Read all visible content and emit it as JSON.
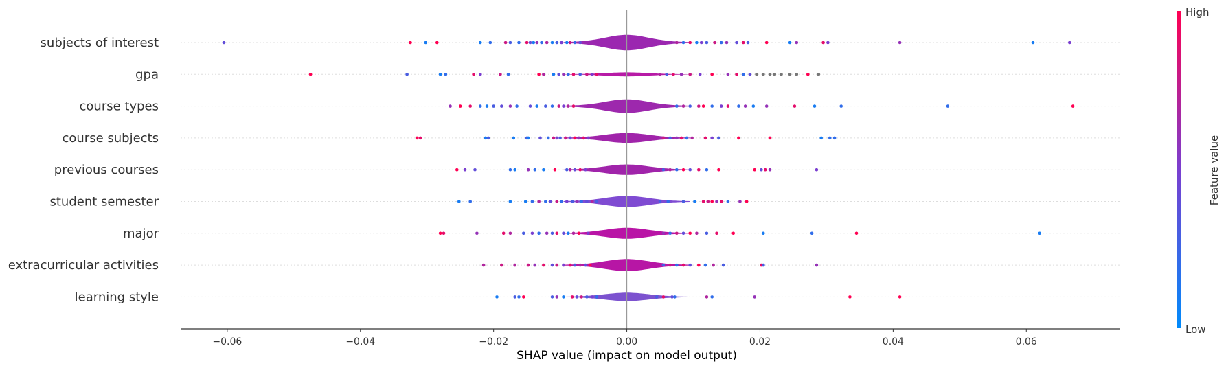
{
  "chart_data": {
    "type": "scatter",
    "subtype": "violin-summary",
    "title": "",
    "xlabel": "SHAP value (impact on model output)",
    "ylabel": "",
    "xlim": [
      -0.067,
      0.074
    ],
    "xticks": [
      -0.06,
      -0.04,
      -0.02,
      0.0,
      0.02,
      0.04,
      0.06
    ],
    "xtick_labels": [
      "−0.06",
      "−0.04",
      "−0.02",
      "0.00",
      "0.02",
      "0.04",
      "0.06"
    ],
    "grid": false,
    "colorbar": {
      "label": "Feature value",
      "high_label": "High",
      "low_label": "Low",
      "high_color": "#ff0052",
      "low_color": "#008bfb"
    },
    "features": [
      {
        "name": "subjects of interest",
        "violin_color": "#9b27b0",
        "violin_halfwidth": 0.7,
        "points": [
          [
            -0.0605,
            0.4
          ],
          [
            -0.0325,
            1
          ],
          [
            -0.0302,
            0.1
          ],
          [
            -0.0285,
            1
          ],
          [
            -0.022,
            0.1
          ],
          [
            -0.0205,
            0.2
          ],
          [
            -0.0182,
            0.8
          ],
          [
            -0.0175,
            0.3
          ],
          [
            -0.0162,
            0.2
          ],
          [
            -0.015,
            0.9
          ],
          [
            -0.0145,
            0.4
          ],
          [
            -0.014,
            0.1
          ],
          [
            -0.0135,
            0.6
          ],
          [
            -0.0128,
            0.2
          ],
          [
            -0.012,
            0.7
          ],
          [
            -0.0112,
            0.1
          ],
          [
            -0.0105,
            0.3
          ],
          [
            -0.0098,
            0.5
          ],
          [
            -0.009,
            0.1
          ],
          [
            -0.0085,
            0.8
          ],
          [
            -0.0078,
            0.2
          ],
          [
            -0.007,
            0.4
          ],
          [
            0.0075,
            0.7
          ],
          [
            0.0085,
            0.2
          ],
          [
            0.0095,
            0.9
          ],
          [
            0.0105,
            0.1
          ],
          [
            0.0112,
            0.5
          ],
          [
            0.012,
            0.3
          ],
          [
            0.0132,
            0.8
          ],
          [
            0.0142,
            0.2
          ],
          [
            0.015,
            0.6
          ],
          [
            0.0165,
            0.4
          ],
          [
            0.0175,
            0.9
          ],
          [
            0.0182,
            0.3
          ],
          [
            0.021,
            1
          ],
          [
            0.0245,
            0.1
          ],
          [
            0.0255,
            0.6
          ],
          [
            0.0295,
            0.9
          ],
          [
            0.0302,
            0.5
          ],
          [
            0.041,
            0.6
          ],
          [
            0.061,
            0.1
          ],
          [
            0.0665,
            0.5
          ]
        ]
      },
      {
        "name": "gpa",
        "violin_color": "#b71aa6",
        "violin_halfwidth": 0.18,
        "points": [
          [
            -0.0475,
            1
          ],
          [
            -0.033,
            0.3
          ],
          [
            -0.028,
            0.1
          ],
          [
            -0.0272,
            0.2
          ],
          [
            -0.023,
            0.9
          ],
          [
            -0.022,
            0.5
          ],
          [
            -0.019,
            0.8
          ],
          [
            -0.0178,
            0.2
          ],
          [
            -0.0132,
            1
          ],
          [
            -0.0125,
            0.7
          ],
          [
            -0.011,
            0.1
          ],
          [
            -0.0102,
            0.4
          ],
          [
            -0.0095,
            0.6
          ],
          [
            -0.0088,
            0.2
          ],
          [
            -0.008,
            0.9
          ],
          [
            -0.007,
            0.3
          ],
          [
            -0.006,
            0.8
          ],
          [
            -0.0052,
            0.5
          ],
          [
            -0.0045,
            0.9
          ],
          [
            0.005,
            0.7
          ],
          [
            0.006,
            0.3
          ],
          [
            0.007,
            0.9
          ],
          [
            0.0082,
            0.6
          ],
          [
            0.0095,
            0.8
          ],
          [
            0.011,
            0.5
          ],
          [
            0.0128,
            1
          ],
          [
            0.0152,
            0.6
          ],
          [
            0.0165,
            0.9
          ],
          [
            0.0175,
            0.2
          ],
          [
            0.0185,
            0.4
          ],
          [
            0.0195,
            null
          ],
          [
            0.0205,
            null
          ],
          [
            0.0215,
            null
          ],
          [
            0.0222,
            null
          ],
          [
            0.0232,
            null
          ],
          [
            0.0245,
            null
          ],
          [
            0.0255,
            null
          ],
          [
            0.0272,
            1
          ],
          [
            0.0288,
            null
          ]
        ]
      },
      {
        "name": "course types",
        "violin_color": "#9d28ad",
        "violin_halfwidth": 0.62,
        "points": [
          [
            -0.0265,
            0.6
          ],
          [
            -0.025,
            1
          ],
          [
            -0.0235,
            0.9
          ],
          [
            -0.022,
            0.2
          ],
          [
            -0.021,
            0.1
          ],
          [
            -0.02,
            0.3
          ],
          [
            -0.0188,
            0.4
          ],
          [
            -0.0175,
            0.6
          ],
          [
            -0.0165,
            0.2
          ],
          [
            -0.0145,
            0.4
          ],
          [
            -0.0135,
            0.1
          ],
          [
            -0.0122,
            0.3
          ],
          [
            -0.0112,
            0.2
          ],
          [
            -0.0102,
            0.8
          ],
          [
            -0.0095,
            0.5
          ],
          [
            -0.0088,
            0.7
          ],
          [
            -0.008,
            0.9
          ],
          [
            0.0075,
            0.2
          ],
          [
            0.0085,
            0.7
          ],
          [
            0.0095,
            0.3
          ],
          [
            0.0108,
            0.8
          ],
          [
            0.0115,
            1
          ],
          [
            0.0128,
            0.2
          ],
          [
            0.0142,
            0.5
          ],
          [
            0.0152,
            0.9
          ],
          [
            0.0168,
            0.2
          ],
          [
            0.0178,
            0.6
          ],
          [
            0.019,
            0.1
          ],
          [
            0.021,
            0.6
          ],
          [
            0.0252,
            0.9
          ],
          [
            0.0282,
            0.1
          ],
          [
            0.0322,
            0.2
          ],
          [
            0.0482,
            0.2
          ],
          [
            0.067,
            1
          ]
        ]
      },
      {
        "name": "course subjects",
        "violin_color": "#a024aa",
        "violin_halfwidth": 0.45,
        "points": [
          [
            -0.0315,
            1
          ],
          [
            -0.031,
            0.9
          ],
          [
            -0.0212,
            0.1
          ],
          [
            -0.0208,
            0.3
          ],
          [
            -0.017,
            0.1
          ],
          [
            -0.015,
            0.3
          ],
          [
            -0.0148,
            0.1
          ],
          [
            -0.013,
            0.4
          ],
          [
            -0.0118,
            0.2
          ],
          [
            -0.011,
            0.8
          ],
          [
            -0.0105,
            0.5
          ],
          [
            -0.01,
            0.3
          ],
          [
            -0.0092,
            0.8
          ],
          [
            -0.0085,
            0.4
          ],
          [
            -0.0078,
            1
          ],
          [
            -0.0072,
            0.6
          ],
          [
            -0.0065,
            0.9
          ],
          [
            -0.0058,
            0.5
          ],
          [
            0.0055,
            0.8
          ],
          [
            0.0065,
            0.3
          ],
          [
            0.0075,
            0.6
          ],
          [
            0.0082,
            0.9
          ],
          [
            0.009,
            0.2
          ],
          [
            0.0098,
            0.7
          ],
          [
            0.0118,
            0.9
          ],
          [
            0.0128,
            0.5
          ],
          [
            0.0138,
            0.3
          ],
          [
            0.0168,
            1
          ],
          [
            0.0215,
            1
          ],
          [
            0.0292,
            0.1
          ],
          [
            0.0305,
            0.2
          ],
          [
            0.0312,
            0.2
          ]
        ]
      },
      {
        "name": "previous courses",
        "violin_color": "#a024aa",
        "violin_halfwidth": 0.48,
        "points": [
          [
            -0.0255,
            1
          ],
          [
            -0.0243,
            0.5
          ],
          [
            -0.0228,
            0.4
          ],
          [
            -0.0175,
            0.2
          ],
          [
            -0.0168,
            0.1
          ],
          [
            -0.0148,
            0.6
          ],
          [
            -0.0138,
            0.2
          ],
          [
            -0.0125,
            0.1
          ],
          [
            -0.0108,
            1
          ],
          [
            -0.009,
            0.3
          ],
          [
            -0.0085,
            0.7
          ],
          [
            -0.0078,
            0.4
          ],
          [
            -0.007,
            0.9
          ],
          [
            -0.0062,
            0.5
          ],
          [
            0.0055,
            0.3
          ],
          [
            0.0065,
            0.7
          ],
          [
            0.0075,
            0.2
          ],
          [
            0.0085,
            1
          ],
          [
            0.0095,
            0.4
          ],
          [
            0.0108,
            0.9
          ],
          [
            0.012,
            0.2
          ],
          [
            0.0138,
            1
          ],
          [
            0.0192,
            1
          ],
          [
            0.0202,
            0.4
          ],
          [
            0.0208,
            0.9
          ],
          [
            0.0215,
            0.6
          ],
          [
            0.0285,
            0.5
          ]
        ]
      },
      {
        "name": "student semester",
        "violin_color": "#7f4bd2",
        "violin_halfwidth": 0.5,
        "points": [
          [
            -0.0252,
            0.1
          ],
          [
            -0.0235,
            0.2
          ],
          [
            -0.0175,
            0.1
          ],
          [
            -0.0152,
            0.1
          ],
          [
            -0.0142,
            0.2
          ],
          [
            -0.0132,
            0.7
          ],
          [
            -0.0122,
            0.2
          ],
          [
            -0.0115,
            0.4
          ],
          [
            -0.0105,
            0.8
          ],
          [
            -0.0098,
            0.2
          ],
          [
            -0.009,
            0.5
          ],
          [
            -0.0082,
            0.3
          ],
          [
            -0.0075,
            0.6
          ],
          [
            -0.0068,
            0.2
          ],
          [
            -0.006,
            0.4
          ],
          [
            -0.0052,
            0.7
          ],
          [
            -0.0045,
            0.3
          ],
          [
            0.005,
            0.3
          ],
          [
            0.0062,
            0.2
          ],
          [
            0.0085,
            0.3
          ],
          [
            0.0102,
            0.1
          ],
          [
            0.0115,
            0.9
          ],
          [
            0.0122,
            0.8
          ],
          [
            0.0128,
            1
          ],
          [
            0.0135,
            0.6
          ],
          [
            0.0142,
            0.9
          ],
          [
            0.0152,
            0.2
          ],
          [
            0.017,
            0.6
          ],
          [
            0.018,
            1
          ]
        ]
      },
      {
        "name": "major",
        "violin_color": "#b914a6",
        "violin_halfwidth": 0.5,
        "points": [
          [
            -0.028,
            1
          ],
          [
            -0.0275,
            0.9
          ],
          [
            -0.0225,
            0.6
          ],
          [
            -0.0185,
            0.9
          ],
          [
            -0.0175,
            0.7
          ],
          [
            -0.0155,
            0.3
          ],
          [
            -0.0142,
            0.5
          ],
          [
            -0.0132,
            0.2
          ],
          [
            -0.012,
            0.6
          ],
          [
            -0.0112,
            0.3
          ],
          [
            -0.0105,
            0.9
          ],
          [
            -0.0095,
            0.4
          ],
          [
            -0.0088,
            0.1
          ],
          [
            -0.008,
            0.7
          ],
          [
            -0.0072,
            1
          ],
          [
            -0.0058,
            0.5
          ],
          [
            0.0055,
            0.6
          ],
          [
            0.0065,
            0.2
          ],
          [
            0.0075,
            0.8
          ],
          [
            0.0085,
            0.4
          ],
          [
            0.0095,
            1
          ],
          [
            0.0105,
            0.7
          ],
          [
            0.012,
            0.3
          ],
          [
            0.0135,
            0.9
          ],
          [
            0.016,
            1
          ],
          [
            0.0205,
            0.1
          ],
          [
            0.0278,
            0.2
          ],
          [
            0.0345,
            1
          ],
          [
            0.062,
            0.1
          ]
        ]
      },
      {
        "name": "extracurricular activities",
        "violin_color": "#b716a5",
        "violin_halfwidth": 0.55,
        "points": [
          [
            -0.0215,
            0.7
          ],
          [
            -0.0188,
            0.8
          ],
          [
            -0.0168,
            0.7
          ],
          [
            -0.0148,
            0.8
          ],
          [
            -0.0138,
            0.6
          ],
          [
            -0.0125,
            0.9
          ],
          [
            -0.0112,
            0.4
          ],
          [
            -0.0105,
            0.8
          ],
          [
            -0.0095,
            0.5
          ],
          [
            -0.0085,
            0.9
          ],
          [
            -0.0078,
            0.3
          ],
          [
            -0.007,
            0.7
          ],
          [
            -0.0062,
            0.4
          ],
          [
            -0.0055,
            1
          ],
          [
            0.0055,
            0.3
          ],
          [
            0.0065,
            0.8
          ],
          [
            0.0075,
            0.2
          ],
          [
            0.0085,
            0.9
          ],
          [
            0.0095,
            0.4
          ],
          [
            0.0108,
            1
          ],
          [
            0.0118,
            0.2
          ],
          [
            0.013,
            0.7
          ],
          [
            0.0145,
            0.3
          ],
          [
            0.0202,
            0.9
          ],
          [
            0.0205,
            0.3
          ],
          [
            0.0285,
            0.6
          ]
        ]
      },
      {
        "name": "learning style",
        "violin_color": "#7c52cf",
        "violin_halfwidth": 0.38,
        "points": [
          [
            -0.0195,
            0.1
          ],
          [
            -0.0168,
            0.3
          ],
          [
            -0.0162,
            0.2
          ],
          [
            -0.0155,
            1
          ],
          [
            -0.0112,
            0.3
          ],
          [
            -0.0105,
            0.6
          ],
          [
            -0.0095,
            0.1
          ],
          [
            -0.0082,
            0.9
          ],
          [
            -0.0075,
            0.4
          ],
          [
            -0.0068,
            0.8
          ],
          [
            -0.006,
            0.3
          ],
          [
            -0.0052,
            0.5
          ],
          [
            -0.0045,
            0.2
          ],
          [
            0.0045,
            0.3
          ],
          [
            0.0055,
            0.9
          ],
          [
            0.0068,
            0.4
          ],
          [
            0.0072,
            0.2
          ],
          [
            0.012,
            0.7
          ],
          [
            0.0128,
            0.2
          ],
          [
            0.0192,
            0.6
          ],
          [
            0.0335,
            1
          ],
          [
            0.041,
            1
          ]
        ]
      }
    ]
  }
}
